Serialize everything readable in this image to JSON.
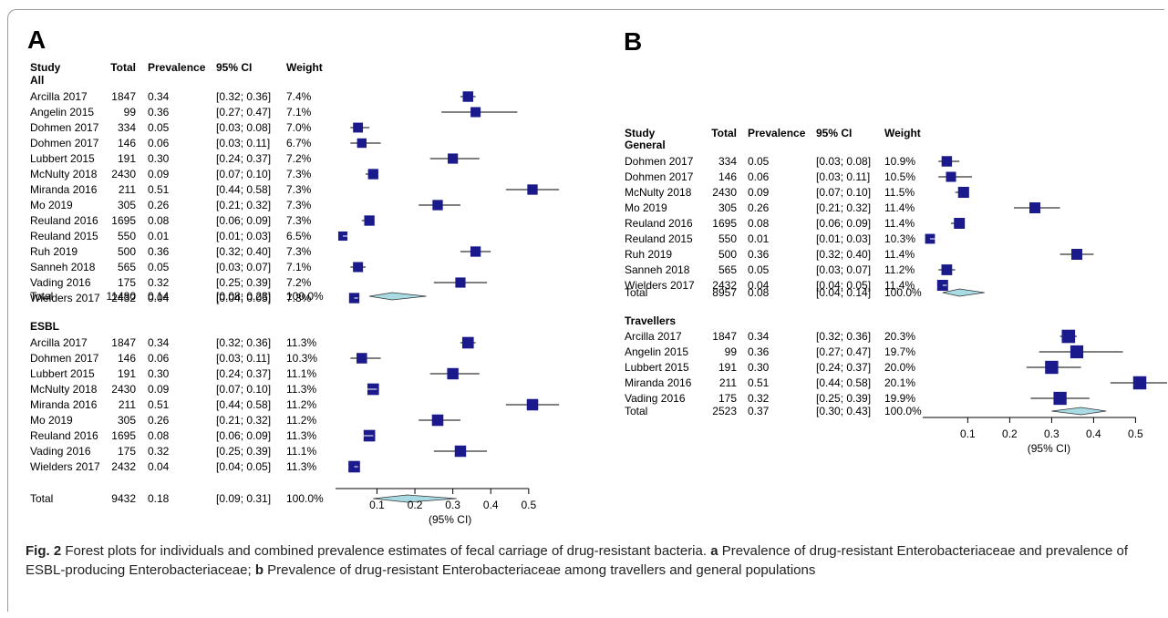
{
  "panels": [
    {
      "letter": "A",
      "headers": [
        "Study",
        "Total",
        "Prevalence",
        "95% CI",
        "Weight"
      ],
      "axis": {
        "ticks": [
          0.1,
          0.2,
          0.3,
          0.4,
          0.5
        ],
        "label": "(95% CI)"
      },
      "groups": [
        {
          "name": "All",
          "studies": [
            {
              "study": "Arcilla 2017",
              "total": "1847",
              "prev": "0.34",
              "ci_text": "[0.32; 0.36]",
              "weight": "7.4%",
              "est": 0.34,
              "lo": 0.32,
              "hi": 0.36
            },
            {
              "study": "Angelin 2015",
              "total": "99",
              "prev": "0.36",
              "ci_text": "[0.27; 0.47]",
              "weight": "7.1%",
              "est": 0.36,
              "lo": 0.27,
              "hi": 0.47
            },
            {
              "study": "Dohmen 2017",
              "total": "334",
              "prev": "0.05",
              "ci_text": "[0.03; 0.08]",
              "weight": "7.0%",
              "est": 0.05,
              "lo": 0.03,
              "hi": 0.08
            },
            {
              "study": "Dohmen 2017",
              "total": "146",
              "prev": "0.06",
              "ci_text": "[0.03; 0.11]",
              "weight": "6.7%",
              "est": 0.06,
              "lo": 0.03,
              "hi": 0.11
            },
            {
              "study": "Lubbert 2015",
              "total": "191",
              "prev": "0.30",
              "ci_text": "[0.24; 0.37]",
              "weight": "7.2%",
              "est": 0.3,
              "lo": 0.24,
              "hi": 0.37
            },
            {
              "study": "McNulty 2018",
              "total": "2430",
              "prev": "0.09",
              "ci_text": "[0.07; 0.10]",
              "weight": "7.3%",
              "est": 0.09,
              "lo": 0.07,
              "hi": 0.1
            },
            {
              "study": "Miranda 2016",
              "total": "211",
              "prev": "0.51",
              "ci_text": "[0.44; 0.58]",
              "weight": "7.3%",
              "est": 0.51,
              "lo": 0.44,
              "hi": 0.58
            },
            {
              "study": "Mo 2019",
              "total": "305",
              "prev": "0.26",
              "ci_text": "[0.21; 0.32]",
              "weight": "7.3%",
              "est": 0.26,
              "lo": 0.21,
              "hi": 0.32
            },
            {
              "study": "Reuland 2016",
              "total": "1695",
              "prev": "0.08",
              "ci_text": "[0.06; 0.09]",
              "weight": "7.3%",
              "est": 0.08,
              "lo": 0.06,
              "hi": 0.09
            },
            {
              "study": "Reuland 2015",
              "total": "550",
              "prev": "0.01",
              "ci_text": "[0.01; 0.03]",
              "weight": "6.5%",
              "est": 0.01,
              "lo": 0.01,
              "hi": 0.03
            },
            {
              "study": "Ruh 2019",
              "total": "500",
              "prev": "0.36",
              "ci_text": "[0.32; 0.40]",
              "weight": "7.3%",
              "est": 0.36,
              "lo": 0.32,
              "hi": 0.4
            },
            {
              "study": "Sanneh 2018",
              "total": "565",
              "prev": "0.05",
              "ci_text": "[0.03; 0.07]",
              "weight": "7.1%",
              "est": 0.05,
              "lo": 0.03,
              "hi": 0.07
            },
            {
              "study": "Vading 2016",
              "total": "175",
              "prev": "0.32",
              "ci_text": "[0.25; 0.39]",
              "weight": "7.2%",
              "est": 0.32,
              "lo": 0.25,
              "hi": 0.39
            },
            {
              "study": "Wielders 2017",
              "total": "2432",
              "prev": "0.04",
              "ci_text": "[0.04; 0.05]",
              "weight": "7.3%",
              "est": 0.04,
              "lo": 0.04,
              "hi": 0.05
            }
          ],
          "total": {
            "study": "Total",
            "total": "11480",
            "prev": "0.14",
            "ci_text": "[0.08; 0.23]",
            "weight": "100.0%",
            "est": 0.14,
            "lo": 0.08,
            "hi": 0.23
          }
        },
        {
          "name": "ESBL",
          "studies": [
            {
              "study": "Arcilla 2017",
              "total": "1847",
              "prev": "0.34",
              "ci_text": "[0.32; 0.36]",
              "weight": "11.3%",
              "est": 0.34,
              "lo": 0.32,
              "hi": 0.36
            },
            {
              "study": "Dohmen 2017",
              "total": "146",
              "prev": "0.06",
              "ci_text": "[0.03; 0.11]",
              "weight": "10.3%",
              "est": 0.06,
              "lo": 0.03,
              "hi": 0.11
            },
            {
              "study": "Lubbert 2015",
              "total": "191",
              "prev": "0.30",
              "ci_text": "[0.24; 0.37]",
              "weight": "11.1%",
              "est": 0.3,
              "lo": 0.24,
              "hi": 0.37
            },
            {
              "study": "McNulty 2018",
              "total": "2430",
              "prev": "0.09",
              "ci_text": "[0.07; 0.10]",
              "weight": "11.3%",
              "est": 0.09,
              "lo": 0.07,
              "hi": 0.1
            },
            {
              "study": "Miranda 2016",
              "total": "211",
              "prev": "0.51",
              "ci_text": "[0.44; 0.58]",
              "weight": "11.2%",
              "est": 0.51,
              "lo": 0.44,
              "hi": 0.58
            },
            {
              "study": "Mo 2019",
              "total": "305",
              "prev": "0.26",
              "ci_text": "[0.21; 0.32]",
              "weight": "11.2%",
              "est": 0.26,
              "lo": 0.21,
              "hi": 0.32
            },
            {
              "study": "Reuland 2016",
              "total": "1695",
              "prev": "0.08",
              "ci_text": "[0.06; 0.09]",
              "weight": "11.3%",
              "est": 0.08,
              "lo": 0.06,
              "hi": 0.09
            },
            {
              "study": "Vading 2016",
              "total": "175",
              "prev": "0.32",
              "ci_text": "[0.25; 0.39]",
              "weight": "11.1%",
              "est": 0.32,
              "lo": 0.25,
              "hi": 0.39
            },
            {
              "study": "Wielders 2017",
              "total": "2432",
              "prev": "0.04",
              "ci_text": "[0.04; 0.05]",
              "weight": "11.3%",
              "est": 0.04,
              "lo": 0.04,
              "hi": 0.05
            }
          ],
          "total": {
            "study": "Total",
            "total": "9432",
            "prev": "0.18",
            "ci_text": "[0.09; 0.31]",
            "weight": "100.0%",
            "est": 0.18,
            "lo": 0.09,
            "hi": 0.31
          }
        }
      ]
    },
    {
      "letter": "B",
      "headers": [
        "Study",
        "Total",
        "Prevalence",
        "95% CI",
        "Weight"
      ],
      "axis": {
        "ticks": [
          0.1,
          0.2,
          0.3,
          0.4,
          0.5
        ],
        "label": "(95% CI)"
      },
      "groups": [
        {
          "name": "General",
          "studies": [
            {
              "study": "Dohmen 2017",
              "total": "334",
              "prev": "0.05",
              "ci_text": "[0.03; 0.08]",
              "weight": "10.9%",
              "est": 0.05,
              "lo": 0.03,
              "hi": 0.08
            },
            {
              "study": "Dohmen 2017",
              "total": "146",
              "prev": "0.06",
              "ci_text": "[0.03; 0.11]",
              "weight": "10.5%",
              "est": 0.06,
              "lo": 0.03,
              "hi": 0.11
            },
            {
              "study": "McNulty 2018",
              "total": "2430",
              "prev": "0.09",
              "ci_text": "[0.07; 0.10]",
              "weight": "11.5%",
              "est": 0.09,
              "lo": 0.07,
              "hi": 0.1
            },
            {
              "study": "Mo 2019",
              "total": "305",
              "prev": "0.26",
              "ci_text": "[0.21; 0.32]",
              "weight": "11.4%",
              "est": 0.26,
              "lo": 0.21,
              "hi": 0.32
            },
            {
              "study": "Reuland 2016",
              "total": "1695",
              "prev": "0.08",
              "ci_text": "[0.06; 0.09]",
              "weight": "11.4%",
              "est": 0.08,
              "lo": 0.06,
              "hi": 0.09
            },
            {
              "study": "Reuland 2015",
              "total": "550",
              "prev": "0.01",
              "ci_text": "[0.01; 0.03]",
              "weight": "10.3%",
              "est": 0.01,
              "lo": 0.01,
              "hi": 0.03
            },
            {
              "study": "Ruh 2019",
              "total": "500",
              "prev": "0.36",
              "ci_text": "[0.32; 0.40]",
              "weight": "11.4%",
              "est": 0.36,
              "lo": 0.32,
              "hi": 0.4
            },
            {
              "study": "Sanneh 2018",
              "total": "565",
              "prev": "0.05",
              "ci_text": "[0.03; 0.07]",
              "weight": "11.2%",
              "est": 0.05,
              "lo": 0.03,
              "hi": 0.07
            },
            {
              "study": "Wielders 2017",
              "total": "2432",
              "prev": "0.04",
              "ci_text": "[0.04; 0.05]",
              "weight": "11.4%",
              "est": 0.04,
              "lo": 0.04,
              "hi": 0.05
            }
          ],
          "total": {
            "study": "Total",
            "total": "8957",
            "prev": "0.08",
            "ci_text": "[0.04; 0.14]",
            "weight": "100.0%",
            "est": 0.08,
            "lo": 0.04,
            "hi": 0.14
          }
        },
        {
          "name": "Travellers",
          "studies": [
            {
              "study": "Arcilla 2017",
              "total": "1847",
              "prev": "0.34",
              "ci_text": "[0.32; 0.36]",
              "weight": "20.3%",
              "est": 0.34,
              "lo": 0.32,
              "hi": 0.36
            },
            {
              "study": "Angelin 2015",
              "total": "99",
              "prev": "0.36",
              "ci_text": "[0.27; 0.47]",
              "weight": "19.7%",
              "est": 0.36,
              "lo": 0.27,
              "hi": 0.47
            },
            {
              "study": "Lubbert 2015",
              "total": "191",
              "prev": "0.30",
              "ci_text": "[0.24; 0.37]",
              "weight": "20.0%",
              "est": 0.3,
              "lo": 0.24,
              "hi": 0.37
            },
            {
              "study": "Miranda 2016",
              "total": "211",
              "prev": "0.51",
              "ci_text": "[0.44; 0.58]",
              "weight": "20.1%",
              "est": 0.51,
              "lo": 0.44,
              "hi": 0.58
            },
            {
              "study": "Vading 2016",
              "total": "175",
              "prev": "0.32",
              "ci_text": "[0.25; 0.39]",
              "weight": "19.9%",
              "est": 0.32,
              "lo": 0.25,
              "hi": 0.39
            }
          ],
          "total": {
            "study": "Total",
            "total": "2523",
            "prev": "0.37",
            "ci_text": "[0.30; 0.43]",
            "weight": "100.0%",
            "est": 0.37,
            "lo": 0.3,
            "hi": 0.43
          }
        }
      ]
    }
  ],
  "colors": {
    "square": "#1a1a8c",
    "diamond": "#a8dbe4",
    "ci_line": "#000000",
    "frame": "#9a9a9a"
  },
  "caption": {
    "label": "Fig. 2",
    "text_1": " Forest plots for individuals and combined prevalence estimates of fecal carriage of drug-resistant bacteria. ",
    "a": "a",
    "text_2": " Prevalence of drug-resistant Enterobacteriaceae and prevalence of ESBL-producing Enterobacteriaceae; ",
    "b": "b",
    "text_3": " Prevalence of drug-resistant Enterobacteriaceae among travellers and general populations"
  },
  "chart_data": [
    {
      "type": "forest",
      "panel": "A",
      "xlabel": "(95% CI)",
      "xticks": [
        0.1,
        0.2,
        0.3,
        0.4,
        0.5
      ],
      "groups": [
        {
          "name": "All",
          "estimates": [
            0.34,
            0.36,
            0.05,
            0.06,
            0.3,
            0.09,
            0.51,
            0.26,
            0.08,
            0.01,
            0.36,
            0.05,
            0.32,
            0.04
          ],
          "pooled": {
            "est": 0.14,
            "lo": 0.08,
            "hi": 0.23
          }
        },
        {
          "name": "ESBL",
          "estimates": [
            0.34,
            0.06,
            0.3,
            0.09,
            0.51,
            0.26,
            0.08,
            0.32,
            0.04
          ],
          "pooled": {
            "est": 0.18,
            "lo": 0.09,
            "hi": 0.31
          }
        }
      ]
    },
    {
      "type": "forest",
      "panel": "B",
      "xlabel": "(95% CI)",
      "xticks": [
        0.1,
        0.2,
        0.3,
        0.4,
        0.5
      ],
      "groups": [
        {
          "name": "General",
          "estimates": [
            0.05,
            0.06,
            0.09,
            0.26,
            0.08,
            0.01,
            0.36,
            0.05,
            0.04
          ],
          "pooled": {
            "est": 0.08,
            "lo": 0.04,
            "hi": 0.14
          }
        },
        {
          "name": "Travellers",
          "estimates": [
            0.34,
            0.36,
            0.3,
            0.51,
            0.32
          ],
          "pooled": {
            "est": 0.37,
            "lo": 0.3,
            "hi": 0.43
          }
        }
      ]
    }
  ]
}
